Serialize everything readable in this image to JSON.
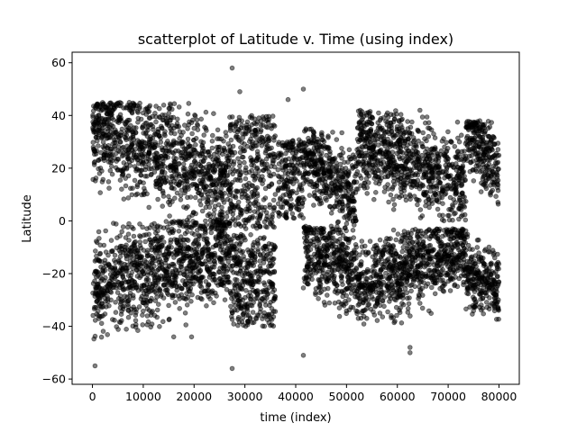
{
  "chart_data": {
    "type": "scatter",
    "title": "scatterplot of Latitude v. Time (using index)",
    "xlabel": "time (index)",
    "ylabel": "Latitude",
    "xlim": [
      -4000,
      84000
    ],
    "ylim": [
      -62,
      64
    ],
    "xticks": [
      0,
      10000,
      20000,
      30000,
      40000,
      50000,
      60000,
      70000,
      80000
    ],
    "yticks": [
      -60,
      -40,
      -20,
      0,
      20,
      40,
      60
    ],
    "ytick_labels": [
      "−60",
      "−40",
      "−20",
      "0",
      "20",
      "40",
      "60"
    ],
    "grid": false,
    "marker_color": "#000000",
    "marker_alpha": 0.5,
    "point_count_approx": 80000,
    "bands": [
      {
        "x_range": [
          0,
          27000
        ],
        "lat_range": [
          -2,
          45
        ],
        "peak_lat_start": 35,
        "peak_lat_end": 15
      },
      {
        "x_range": [
          0,
          27000
        ],
        "lat_range": [
          -45,
          0
        ],
        "peak_lat_start": -25,
        "peak_lat_end": -10
      },
      {
        "x_range": [
          27000,
          36000
        ],
        "lat_range": [
          -3,
          40
        ]
      },
      {
        "x_range": [
          27000,
          36000
        ],
        "lat_range": [
          -40,
          -5
        ]
      },
      {
        "x_range": [
          36500,
          41500
        ],
        "lat_range": [
          1,
          31
        ]
      },
      {
        "x_range": [
          41500,
          52000
        ],
        "lat_range": [
          -2,
          35
        ],
        "peak_lat_start": 25,
        "peak_lat_end": 10
      },
      {
        "x_range": [
          41500,
          52000
        ],
        "lat_range": [
          -40,
          -2
        ],
        "peak_lat_start": -10,
        "peak_lat_end": -20
      },
      {
        "x_range": [
          52000,
          73500
        ],
        "lat_range": [
          0,
          42
        ],
        "peak_lat_start": 30,
        "peak_lat_end": 15
      },
      {
        "x_range": [
          52000,
          73500
        ],
        "lat_range": [
          -40,
          -3
        ],
        "peak_lat_start": -25,
        "peak_lat_end": -10
      },
      {
        "x_range": [
          73500,
          80000
        ],
        "lat_range": [
          0,
          38
        ],
        "peak_lat_start": 35,
        "peak_lat_end": 20
      },
      {
        "x_range": [
          73500,
          80000
        ],
        "lat_range": [
          -38,
          -5
        ],
        "peak_lat_start": -20,
        "peak_lat_end": -25
      }
    ],
    "outliers": [
      {
        "x": 27500,
        "y": 58
      },
      {
        "x": 27500,
        "y": -56
      },
      {
        "x": 500,
        "y": -55
      },
      {
        "x": 41500,
        "y": 50
      },
      {
        "x": 38500,
        "y": 46
      },
      {
        "x": 29000,
        "y": 49
      },
      {
        "x": 41500,
        "y": -51
      },
      {
        "x": 62500,
        "y": -50
      },
      {
        "x": 62500,
        "y": -48
      },
      {
        "x": 16000,
        "y": -44
      },
      {
        "x": 19500,
        "y": -44
      }
    ]
  }
}
